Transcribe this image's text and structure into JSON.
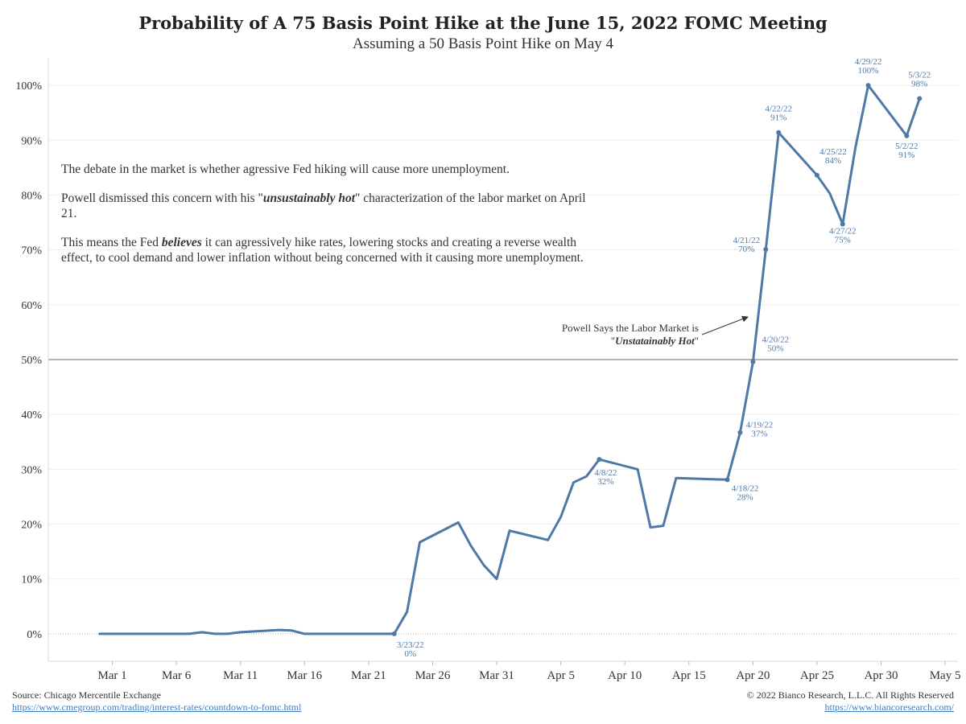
{
  "header": {
    "title": "Probability of A 75 Basis Point Hike at the June 15, 2022 FOMC Meeting",
    "subtitle": "Assuming a 50 Basis Point Hike on May 4"
  },
  "notes": {
    "p1": "The debate in the market is whether agressive Fed hiking will cause more unemployment.",
    "p2_before": "Powell dismissed this concern with his \"",
    "p2_em": "unsustainably hot",
    "p2_after": "\" characterization of the labor market on April 21.",
    "p3_before": "This means the Fed ",
    "p3_em": "believes",
    "p3_after": " it can agressively hike rates, lowering stocks and creating a reverse wealth effect, to cool demand and lower inflation without being concerned with it causing more unemployment."
  },
  "annotation": {
    "line1": "Powell Says the Labor Market is",
    "quote_open": "\"",
    "em": "Unstatainably Hot",
    "quote_close": "\""
  },
  "footer": {
    "source": "Source: Chicago Mercentile Exchange",
    "source_url": "https://www.cmegroup.com/trading/interest-rates/countdown-to-fomc.html",
    "copyright": "© 2022 Bianco Research, L.L.C. All Rights Reserved",
    "site_url": "https://www.biancoresearch.com/"
  },
  "colors": {
    "line": "#4e79a7",
    "label": "#4e79a7",
    "reference_line": "#888888",
    "grid": "#eeeeee"
  },
  "chart_data": {
    "type": "line",
    "title": "Probability of A 75 Basis Point Hike at the June 15, 2022 FOMC Meeting",
    "subtitle": "Assuming a 50 Basis Point Hike on May 4",
    "x_type": "date",
    "xlim": [
      "2022-02-24",
      "2022-05-06"
    ],
    "ylim": [
      -5,
      105
    ],
    "yticks": [
      0,
      10,
      20,
      30,
      40,
      50,
      60,
      70,
      80,
      90,
      100
    ],
    "ytick_labels": [
      "0%",
      "10%",
      "20%",
      "30%",
      "40%",
      "50%",
      "60%",
      "70%",
      "80%",
      "90%",
      "100%"
    ],
    "xticks": [
      "2022-03-01",
      "2022-03-06",
      "2022-03-11",
      "2022-03-16",
      "2022-03-21",
      "2022-03-26",
      "2022-03-31",
      "2022-04-05",
      "2022-04-10",
      "2022-04-15",
      "2022-04-20",
      "2022-04-25",
      "2022-04-30",
      "2022-05-05"
    ],
    "xtick_labels": [
      "Mar 1",
      "Mar 6",
      "Mar 11",
      "Mar 16",
      "Mar 21",
      "Mar 26",
      "Mar 31",
      "Apr 5",
      "Apr 10",
      "Apr 15",
      "Apr 20",
      "Apr 25",
      "Apr 30",
      "May 5"
    ],
    "reference_line": 50,
    "grid": true,
    "series": [
      {
        "x": [
          "2022-02-28",
          "2022-03-01",
          "2022-03-02",
          "2022-03-03",
          "2022-03-04",
          "2022-03-07",
          "2022-03-08",
          "2022-03-09",
          "2022-03-10",
          "2022-03-11",
          "2022-03-14",
          "2022-03-15",
          "2022-03-16",
          "2022-03-17",
          "2022-03-18",
          "2022-03-21",
          "2022-03-22",
          "2022-03-23",
          "2022-03-24",
          "2022-03-25",
          "2022-03-28",
          "2022-03-29",
          "2022-03-30",
          "2022-03-31",
          "2022-04-01",
          "2022-04-04",
          "2022-04-05",
          "2022-04-06",
          "2022-04-07",
          "2022-04-08",
          "2022-04-11",
          "2022-04-12",
          "2022-04-13",
          "2022-04-14",
          "2022-04-18",
          "2022-04-19",
          "2022-04-20",
          "2022-04-21",
          "2022-04-22",
          "2022-04-25",
          "2022-04-26",
          "2022-04-27",
          "2022-04-28",
          "2022-04-29",
          "2022-05-02",
          "2022-05-03"
        ],
        "values": [
          0,
          0,
          0,
          0,
          0,
          0,
          0.3,
          0,
          0,
          0.3,
          0.7,
          0.6,
          0,
          0,
          0,
          0,
          0,
          0,
          4,
          16.7,
          20.3,
          16,
          12.5,
          10,
          18.8,
          17.1,
          21.3,
          27.6,
          28.7,
          31.8,
          30,
          19.4,
          19.7,
          28.4,
          28.1,
          36.7,
          49.6,
          70.1,
          91.4,
          83.6,
          80.3,
          74.7,
          88.7,
          100,
          90.8,
          97.6
        ]
      }
    ],
    "point_labels": [
      {
        "x": "2022-03-23",
        "date": "3/23/22",
        "value": 0,
        "text": "0%"
      },
      {
        "x": "2022-04-08",
        "date": "4/8/22",
        "value": 31.8,
        "text": "32%"
      },
      {
        "x": "2022-04-18",
        "date": "4/18/22",
        "value": 28.1,
        "text": "28%"
      },
      {
        "x": "2022-04-19",
        "date": "4/19/22",
        "value": 36.7,
        "text": "37%"
      },
      {
        "x": "2022-04-20",
        "date": "4/20/22",
        "value": 49.6,
        "text": "50%"
      },
      {
        "x": "2022-04-21",
        "date": "4/21/22",
        "value": 70.1,
        "text": "70%"
      },
      {
        "x": "2022-04-22",
        "date": "4/22/22",
        "value": 91.4,
        "text": "91%"
      },
      {
        "x": "2022-04-25",
        "date": "4/25/22",
        "value": 83.6,
        "text": "84%"
      },
      {
        "x": "2022-04-27",
        "date": "4/27/22",
        "value": 74.7,
        "text": "75%"
      },
      {
        "x": "2022-04-29",
        "date": "4/29/22",
        "value": 100,
        "text": "100%"
      },
      {
        "x": "2022-05-02",
        "date": "5/2/22",
        "value": 90.8,
        "text": "91%"
      },
      {
        "x": "2022-05-03",
        "date": "5/3/22",
        "value": 97.6,
        "text": "98%"
      }
    ]
  }
}
